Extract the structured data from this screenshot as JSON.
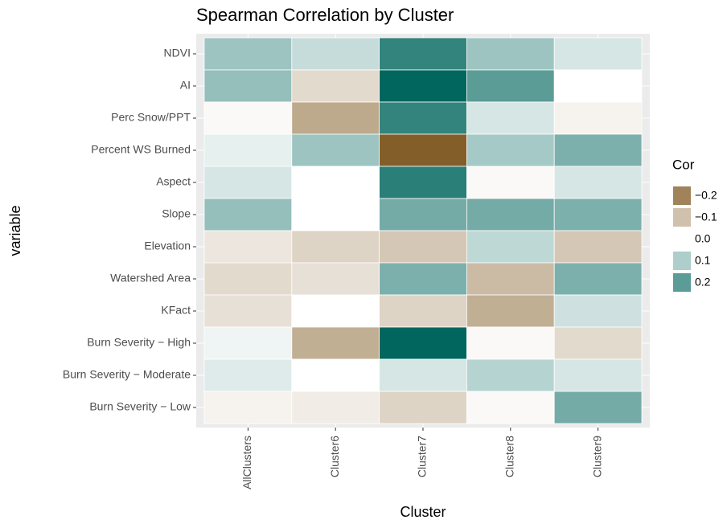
{
  "chart_data": {
    "type": "heatmap",
    "title": "Spearman Correlation by Cluster",
    "x_label": "Cluster",
    "y_label": "variable",
    "legend_title": "Cor",
    "x": [
      "AllClusters",
      "Cluster6",
      "Cluster7",
      "Cluster8",
      "Cluster9"
    ],
    "y": [
      "NDVI",
      "AI",
      "Perc Snow/PPT",
      "Percent WS Burned",
      "Aspect",
      "Slope",
      "Elevation",
      "Watershed Area",
      "KFact",
      "Burn Severity − High",
      "Burn Severity − Moderate",
      "Burn Severity − Low"
    ],
    "values": [
      [
        0.12,
        0.07,
        0.25,
        0.12,
        0.05
      ],
      [
        0.13,
        -0.06,
        0.31,
        0.2,
        0.0
      ],
      [
        -0.01,
        -0.14,
        0.25,
        0.05,
        -0.02
      ],
      [
        0.03,
        0.12,
        -0.26,
        0.11,
        0.16
      ],
      [
        0.05,
        0.0,
        0.26,
        -0.01,
        0.05
      ],
      [
        0.13,
        0.0,
        0.17,
        0.17,
        0.16
      ],
      [
        -0.04,
        -0.07,
        -0.09,
        0.08,
        -0.09
      ],
      [
        -0.06,
        -0.05,
        0.16,
        -0.11,
        0.16
      ],
      [
        -0.05,
        0.0,
        -0.07,
        -0.13,
        0.06
      ],
      [
        0.02,
        -0.13,
        0.31,
        -0.01,
        -0.06
      ],
      [
        0.04,
        0.0,
        0.05,
        0.09,
        0.05
      ],
      [
        -0.02,
        -0.03,
        -0.07,
        -0.01,
        0.17
      ]
    ],
    "clim": [
      -0.28,
      0.31
    ],
    "color_low": "#7a5218",
    "color_mid": "#ffffff",
    "color_high": "#01665e",
    "legend_ticks": [
      {
        "value": -0.2,
        "label": "−0.2"
      },
      {
        "value": -0.1,
        "label": "−0.1"
      },
      {
        "value": 0,
        "label": "0.0"
      },
      0.1,
      0.2
    ]
  }
}
